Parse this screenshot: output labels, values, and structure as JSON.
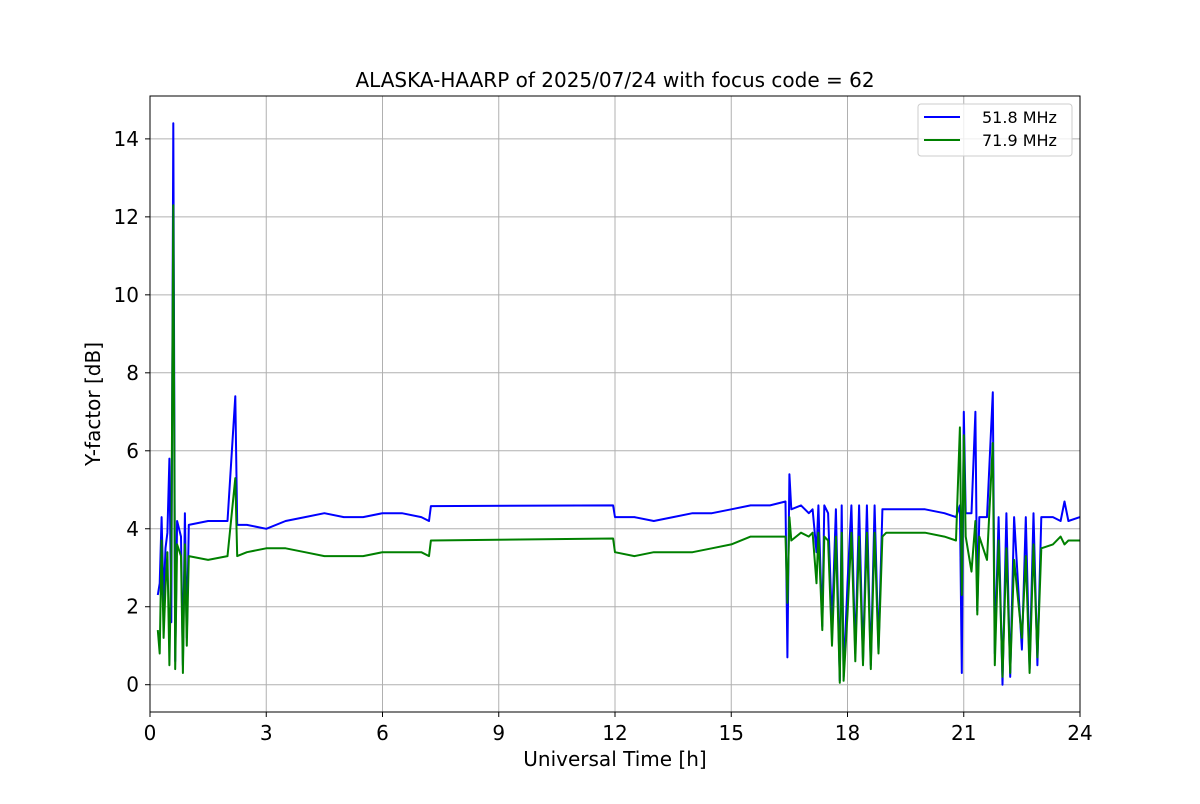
{
  "chart_data": {
    "type": "line",
    "title": "ALASKA-HAARP of 2025/07/24 with focus code = 62",
    "xlabel": "Universal Time [h]",
    "ylabel": "Y-factor [dB]",
    "xlim": [
      0,
      24
    ],
    "ylim": [
      -0.7,
      15.1
    ],
    "xticks": [
      0,
      3,
      6,
      9,
      12,
      15,
      18,
      21,
      24
    ],
    "xtick_labels": [
      "0",
      "3",
      "6",
      "9",
      "12",
      "15",
      "18",
      "21",
      "24"
    ],
    "yticks": [
      0,
      2,
      4,
      6,
      8,
      10,
      12,
      14
    ],
    "ytick_labels": [
      "0",
      "2",
      "4",
      "6",
      "8",
      "10",
      "12",
      "14"
    ],
    "grid": true,
    "legend_position": "top-right",
    "colors": {
      "series_1": "#0000ff",
      "series_2": "#008000",
      "grid": "#b0b0b0",
      "axes": "#000000"
    },
    "series": [
      {
        "name": "51.8 MHz",
        "color": "#0000ff",
        "points": [
          [
            0.2,
            2.3
          ],
          [
            0.25,
            2.6
          ],
          [
            0.3,
            4.3
          ],
          [
            0.35,
            2.1
          ],
          [
            0.4,
            3.5
          ],
          [
            0.45,
            3.9
          ],
          [
            0.5,
            5.8
          ],
          [
            0.55,
            1.6
          ],
          [
            0.6,
            14.4
          ],
          [
            0.65,
            0.6
          ],
          [
            0.7,
            4.2
          ],
          [
            0.8,
            3.8
          ],
          [
            0.85,
            0.5
          ],
          [
            0.9,
            4.4
          ],
          [
            0.95,
            1.2
          ],
          [
            1.0,
            4.1
          ],
          [
            1.5,
            4.2
          ],
          [
            2.0,
            4.2
          ],
          [
            2.2,
            7.4
          ],
          [
            2.25,
            4.1
          ],
          [
            2.5,
            4.1
          ],
          [
            3.0,
            4.0
          ],
          [
            3.5,
            4.2
          ],
          [
            4.0,
            4.3
          ],
          [
            4.5,
            4.4
          ],
          [
            5.0,
            4.3
          ],
          [
            5.5,
            4.3
          ],
          [
            6.0,
            4.4
          ],
          [
            6.5,
            4.4
          ],
          [
            7.0,
            4.3
          ],
          [
            7.2,
            4.2
          ],
          [
            7.25,
            4.58
          ],
          [
            11.95,
            4.6
          ],
          [
            12.0,
            4.3
          ],
          [
            12.5,
            4.3
          ],
          [
            13.0,
            4.2
          ],
          [
            13.5,
            4.3
          ],
          [
            14.0,
            4.4
          ],
          [
            14.5,
            4.4
          ],
          [
            15.0,
            4.5
          ],
          [
            15.5,
            4.6
          ],
          [
            16.0,
            4.6
          ],
          [
            16.4,
            4.7
          ],
          [
            16.45,
            0.7
          ],
          [
            16.5,
            5.4
          ],
          [
            16.55,
            4.5
          ],
          [
            16.8,
            4.6
          ],
          [
            17.0,
            4.4
          ],
          [
            17.1,
            4.5
          ],
          [
            17.2,
            3.4
          ],
          [
            17.25,
            4.6
          ],
          [
            17.35,
            1.5
          ],
          [
            17.4,
            4.6
          ],
          [
            17.5,
            4.4
          ],
          [
            17.6,
            1.5
          ],
          [
            17.7,
            4.5
          ],
          [
            17.8,
            0.1
          ],
          [
            17.85,
            4.6
          ],
          [
            17.9,
            0.2
          ],
          [
            18.0,
            2.6
          ],
          [
            18.1,
            4.6
          ],
          [
            18.2,
            0.8
          ],
          [
            18.3,
            4.6
          ],
          [
            18.4,
            0.6
          ],
          [
            18.5,
            4.6
          ],
          [
            18.6,
            0.5
          ],
          [
            18.7,
            4.6
          ],
          [
            18.8,
            0.9
          ],
          [
            18.9,
            4.5
          ],
          [
            19.0,
            4.5
          ],
          [
            19.5,
            4.5
          ],
          [
            20.0,
            4.5
          ],
          [
            20.5,
            4.4
          ],
          [
            20.8,
            4.3
          ],
          [
            20.9,
            4.6
          ],
          [
            20.95,
            0.3
          ],
          [
            21.0,
            7.0
          ],
          [
            21.05,
            4.4
          ],
          [
            21.2,
            4.4
          ],
          [
            21.3,
            7.0
          ],
          [
            21.35,
            1.9
          ],
          [
            21.4,
            4.3
          ],
          [
            21.6,
            4.3
          ],
          [
            21.75,
            7.5
          ],
          [
            21.8,
            0.8
          ],
          [
            21.9,
            4.3
          ],
          [
            22.0,
            0.0
          ],
          [
            22.1,
            4.4
          ],
          [
            22.2,
            0.2
          ],
          [
            22.3,
            4.3
          ],
          [
            22.5,
            0.9
          ],
          [
            22.6,
            4.3
          ],
          [
            22.7,
            0.4
          ],
          [
            22.8,
            4.4
          ],
          [
            22.9,
            0.5
          ],
          [
            23.0,
            4.3
          ],
          [
            23.3,
            4.3
          ],
          [
            23.5,
            4.2
          ],
          [
            23.6,
            4.7
          ],
          [
            23.7,
            4.2
          ],
          [
            24.0,
            4.3
          ]
        ]
      },
      {
        "name": "71.9 MHz",
        "color": "#008000",
        "points": [
          [
            0.2,
            1.4
          ],
          [
            0.25,
            0.8
          ],
          [
            0.3,
            3.7
          ],
          [
            0.35,
            1.2
          ],
          [
            0.4,
            2.5
          ],
          [
            0.45,
            3.4
          ],
          [
            0.5,
            0.5
          ],
          [
            0.55,
            3.3
          ],
          [
            0.6,
            12.3
          ],
          [
            0.65,
            0.4
          ],
          [
            0.7,
            3.6
          ],
          [
            0.8,
            3.3
          ],
          [
            0.85,
            0.3
          ],
          [
            0.9,
            3.6
          ],
          [
            0.95,
            1.0
          ],
          [
            1.0,
            3.3
          ],
          [
            1.5,
            3.2
          ],
          [
            2.0,
            3.3
          ],
          [
            2.2,
            5.3
          ],
          [
            2.25,
            3.3
          ],
          [
            2.5,
            3.4
          ],
          [
            3.0,
            3.5
          ],
          [
            3.5,
            3.5
          ],
          [
            4.0,
            3.4
          ],
          [
            4.5,
            3.3
          ],
          [
            5.0,
            3.3
          ],
          [
            5.5,
            3.3
          ],
          [
            6.0,
            3.4
          ],
          [
            6.5,
            3.4
          ],
          [
            7.0,
            3.4
          ],
          [
            7.2,
            3.3
          ],
          [
            7.25,
            3.7
          ],
          [
            11.95,
            3.75
          ],
          [
            12.0,
            3.4
          ],
          [
            12.5,
            3.3
          ],
          [
            13.0,
            3.4
          ],
          [
            13.5,
            3.4
          ],
          [
            14.0,
            3.4
          ],
          [
            14.5,
            3.5
          ],
          [
            15.0,
            3.6
          ],
          [
            15.5,
            3.8
          ],
          [
            16.0,
            3.8
          ],
          [
            16.4,
            3.8
          ],
          [
            16.45,
            2.1
          ],
          [
            16.5,
            4.3
          ],
          [
            16.55,
            3.7
          ],
          [
            16.8,
            3.9
          ],
          [
            17.0,
            3.8
          ],
          [
            17.1,
            3.9
          ],
          [
            17.2,
            2.6
          ],
          [
            17.25,
            3.9
          ],
          [
            17.35,
            1.4
          ],
          [
            17.4,
            3.8
          ],
          [
            17.5,
            3.7
          ],
          [
            17.6,
            1.0
          ],
          [
            17.7,
            3.8
          ],
          [
            17.8,
            0.05
          ],
          [
            17.85,
            3.9
          ],
          [
            17.9,
            0.1
          ],
          [
            18.0,
            1.8
          ],
          [
            18.1,
            3.9
          ],
          [
            18.2,
            0.6
          ],
          [
            18.3,
            3.8
          ],
          [
            18.4,
            0.5
          ],
          [
            18.5,
            3.9
          ],
          [
            18.6,
            0.4
          ],
          [
            18.7,
            3.9
          ],
          [
            18.8,
            0.8
          ],
          [
            18.9,
            3.8
          ],
          [
            19.0,
            3.9
          ],
          [
            19.5,
            3.9
          ],
          [
            20.0,
            3.9
          ],
          [
            20.5,
            3.8
          ],
          [
            20.8,
            3.7
          ],
          [
            20.9,
            6.6
          ],
          [
            20.95,
            2.3
          ],
          [
            21.0,
            6.4
          ],
          [
            21.05,
            3.8
          ],
          [
            21.2,
            2.9
          ],
          [
            21.3,
            4.2
          ],
          [
            21.35,
            1.8
          ],
          [
            21.4,
            3.8
          ],
          [
            21.6,
            3.2
          ],
          [
            21.75,
            6.2
          ],
          [
            21.8,
            0.5
          ],
          [
            21.9,
            3.7
          ],
          [
            22.0,
            0.2
          ],
          [
            22.1,
            3.5
          ],
          [
            22.2,
            0.3
          ],
          [
            22.3,
            3.2
          ],
          [
            22.5,
            1.2
          ],
          [
            22.6,
            3.3
          ],
          [
            22.7,
            0.3
          ],
          [
            22.8,
            3.6
          ],
          [
            22.9,
            0.7
          ],
          [
            23.0,
            3.5
          ],
          [
            23.3,
            3.6
          ],
          [
            23.5,
            3.8
          ],
          [
            23.6,
            3.6
          ],
          [
            23.7,
            3.7
          ],
          [
            24.0,
            3.7
          ]
        ]
      }
    ]
  }
}
